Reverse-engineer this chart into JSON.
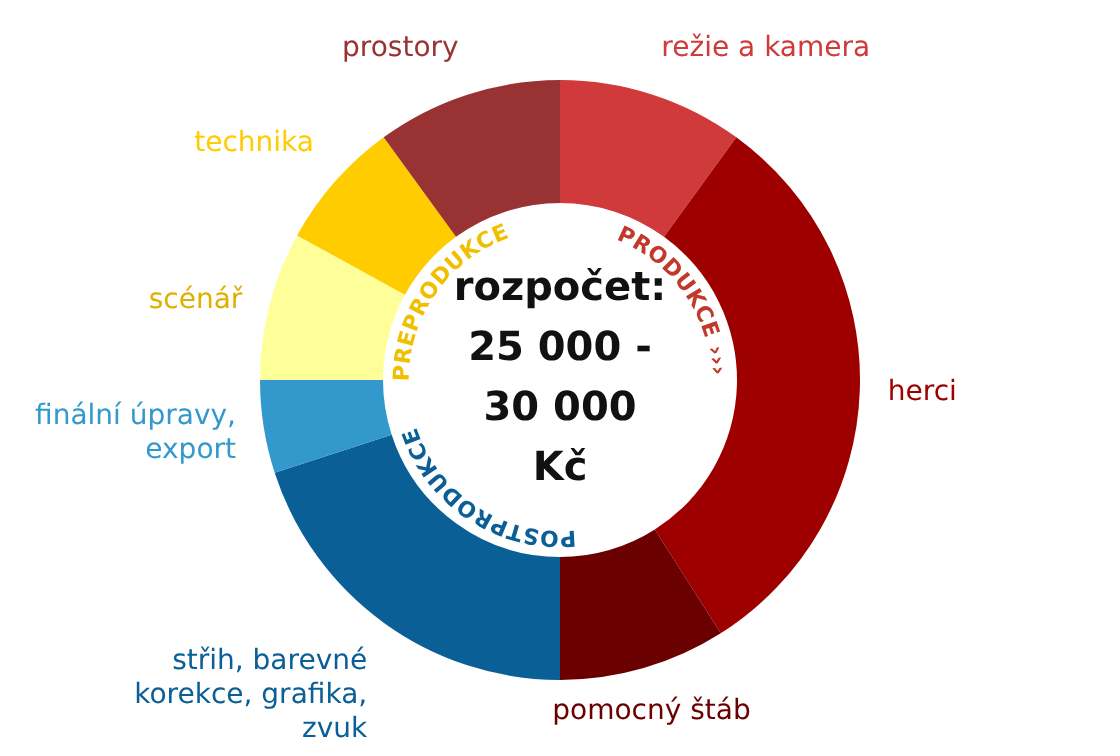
{
  "chart_data": {
    "type": "donut",
    "title": "rozpočet:",
    "subtitle": "25 000 - 30 000 Kč",
    "categories": [
      "režie a kamera",
      "herci",
      "pomocný štáb",
      "střih, barevné korekce, grafika, zvuk",
      "finální úpravy, export",
      "scénář",
      "technika",
      "prostory"
    ],
    "values": [
      10,
      31,
      9,
      20,
      5,
      8,
      7,
      10
    ],
    "colors": [
      "#d03a3a",
      "#9e0000",
      "#6b0000",
      "#0a5f96",
      "#3399cc",
      "#ffff99",
      "#ffcc00",
      "#993333"
    ],
    "annotations": [
      "PREPRODUKCE",
      "PRODUKCE ›››",
      "POSTPRODUKCE"
    ],
    "legend": false
  }
}
